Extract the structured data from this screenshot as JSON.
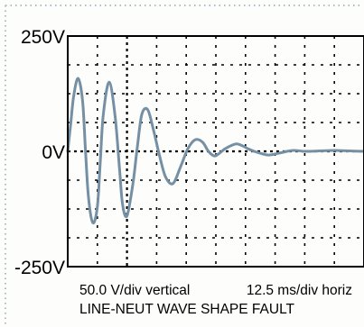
{
  "chart_data": {
    "type": "line",
    "title": "",
    "ylim": [
      -250,
      250
    ],
    "y_tick_labels": [
      {
        "value": 250,
        "label": "250V"
      },
      {
        "value": 0,
        "label": "0V"
      },
      {
        "value": -250,
        "label": "-250V"
      }
    ],
    "x_divisions": 10,
    "y_divisions": 8,
    "scale_caption": {
      "vertical": "50.0 V/div vertical",
      "horizontal": "12.5 ms/div horiz"
    },
    "caption": "LINE-NEUT WAVE SHAPE FAULT",
    "grid": true,
    "trigger_marker_division": 2,
    "series": [
      {
        "color": "#7590a4",
        "x_div": [
          0,
          0.1,
          0.2,
          0.35,
          0.5,
          0.6,
          0.7,
          0.85,
          1.0,
          1.1,
          1.2,
          1.4,
          1.6,
          1.75,
          1.85,
          2.0,
          2.2,
          2.35,
          2.5,
          2.7,
          2.9,
          3.1,
          3.3,
          3.55,
          3.8,
          4.05,
          4.3,
          4.55,
          4.75,
          4.95,
          5.1,
          5.3,
          5.5,
          5.7,
          5.9,
          6.1,
          6.3,
          6.55,
          6.8,
          7.2,
          7.6,
          8.0,
          8.5,
          9.0,
          9.5,
          10.0
        ],
        "y_volts": [
          0,
          60,
          120,
          158,
          110,
          0,
          -100,
          -155,
          -120,
          -20,
          80,
          150,
          75,
          -40,
          -115,
          -140,
          -70,
          10,
          80,
          90,
          45,
          -10,
          -55,
          -70,
          -35,
          5,
          25,
          20,
          0,
          -10,
          -5,
          5,
          12,
          16,
          12,
          5,
          0,
          -5,
          -8,
          -3,
          2,
          0,
          1,
          2,
          1,
          0
        ]
      }
    ]
  }
}
